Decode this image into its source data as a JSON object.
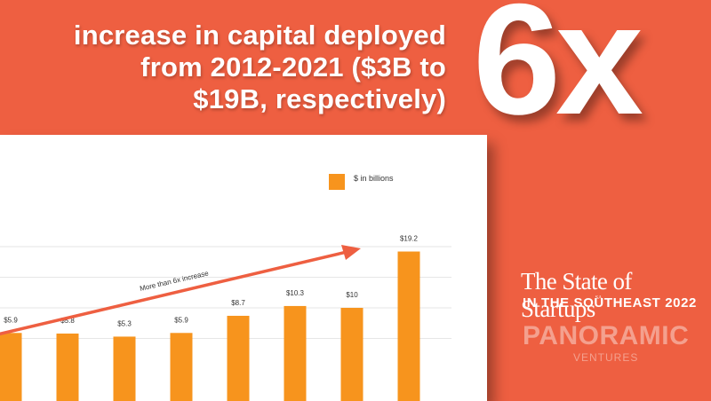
{
  "headline": {
    "line1": "increase in capital deployed",
    "line2": "from 2012-2021 ($3B to",
    "line3": "$19B, respectively)"
  },
  "big_multiplier": "6x",
  "brand": {
    "title": "The State of Startups",
    "title_mark": "SA",
    "subtitle": "IN THE SOUTHEAST 2022",
    "logo": "PANORAMIC",
    "logo_sub": "VENTURES"
  },
  "colors": {
    "background": "#ee5f41",
    "bar": "#f7941d",
    "arrow": "#ee5f41",
    "grid": "#e6e6e6"
  },
  "chart_data": {
    "type": "bar",
    "legend": {
      "label": "$ in billions",
      "position": "top-right"
    },
    "values": [
      5.9,
      5.8,
      5.3,
      5.9,
      8.7,
      10.3,
      10,
      19.2
    ],
    "labels": [
      "$5.9",
      "$5.8",
      "$5.3",
      "$5.9",
      "$8.7",
      "$10.3",
      "$10",
      "$19.2"
    ],
    "ylim": [
      0,
      20
    ],
    "grid": true,
    "annotation": "More than 6x increase"
  }
}
